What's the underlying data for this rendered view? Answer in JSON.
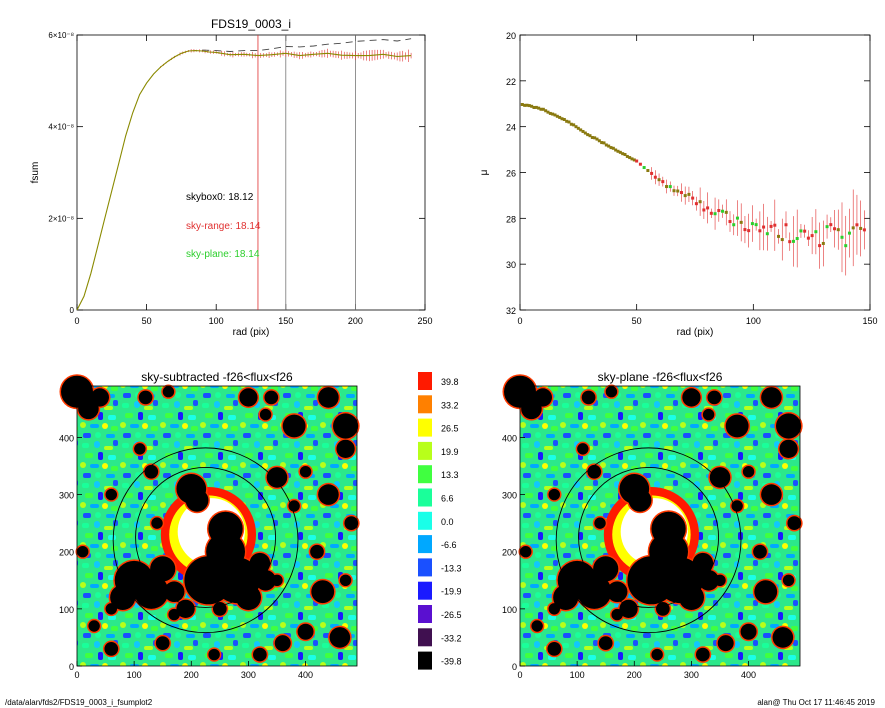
{
  "footer": {
    "left": "/data/alan/fds2/FDS19_0003_i_fsumplot2",
    "right": "alan@  Thu Oct 17 11:46:45 2019"
  },
  "colors": {
    "black": "#000000",
    "red": "#e03030",
    "green": "#2ccf2c",
    "olive": "#8a8a00",
    "dash": "#444444"
  },
  "chart_data": [
    {
      "id": "fsum",
      "type": "line",
      "title": "FDS19_0003_i",
      "xlabel": "rad (pix)",
      "ylabel": "fsum",
      "xlim": [
        0,
        250
      ],
      "ylim": [
        0,
        6e-08
      ],
      "xticks": [
        "0",
        "50",
        "100",
        "150",
        "200",
        "250"
      ],
      "yticks": [
        "0",
        "2×10⁻⁸",
        "4×10⁻⁸",
        "6×10⁻⁸"
      ],
      "yticks_values": [
        0,
        2e-08,
        4e-08,
        6e-08
      ],
      "vlines": [
        130,
        150,
        200
      ],
      "annotations": [
        {
          "text": "skybox0: 18.12",
          "color": "#000000"
        },
        {
          "text": "sky-range: 18.14",
          "color": "#e03030"
        },
        {
          "text": "sky-plane: 18.14",
          "color": "#2ccf2c"
        }
      ],
      "series": [
        {
          "style": "solid",
          "x": [
            0,
            5,
            10,
            15,
            20,
            25,
            30,
            35,
            40,
            45,
            50,
            55,
            60,
            65,
            70,
            75,
            80,
            85,
            90,
            95,
            100,
            110,
            120,
            130,
            140,
            150,
            160,
            170,
            180,
            190,
            200,
            210,
            220,
            230,
            240
          ],
          "y": [
            0,
            3e-09,
            8e-09,
            1.4e-08,
            2e-08,
            2.6e-08,
            3.2e-08,
            3.8e-08,
            4.3e-08,
            4.7e-08,
            4.95e-08,
            5.15e-08,
            5.3e-08,
            5.42e-08,
            5.52e-08,
            5.6e-08,
            5.65e-08,
            5.66e-08,
            5.65e-08,
            5.63e-08,
            5.62e-08,
            5.57e-08,
            5.58e-08,
            5.55e-08,
            5.57e-08,
            5.6e-08,
            5.55e-08,
            5.58e-08,
            5.6e-08,
            5.56e-08,
            5.55e-08,
            5.55e-08,
            5.58e-08,
            5.53e-08,
            5.55e-08
          ]
        },
        {
          "style": "dashed",
          "x": [
            90,
            100,
            110,
            120,
            130,
            140,
            150,
            160,
            170,
            180,
            190,
            200,
            210,
            220,
            230,
            240
          ],
          "y": [
            5.67e-08,
            5.66e-08,
            5.64e-08,
            5.66e-08,
            5.66e-08,
            5.7e-08,
            5.75e-08,
            5.74e-08,
            5.76e-08,
            5.8e-08,
            5.82e-08,
            5.86e-08,
            5.88e-08,
            5.9e-08,
            5.87e-08,
            5.92e-08
          ]
        }
      ]
    },
    {
      "id": "mu",
      "type": "scatter",
      "xlabel": "rad (pix)",
      "ylabel": "μ",
      "xlim": [
        0,
        150
      ],
      "ylim": [
        32,
        20
      ],
      "xticks": [
        "0",
        "50",
        "100",
        "150"
      ],
      "yticks": [
        "20",
        "22",
        "24",
        "26",
        "28",
        "30",
        "32"
      ],
      "yticks_values": [
        20,
        22,
        24,
        26,
        28,
        30,
        32
      ],
      "trend": {
        "x": [
          0,
          10,
          20,
          30,
          40,
          50,
          60,
          70,
          80,
          90,
          100,
          110,
          120,
          130,
          140,
          150
        ],
        "y": [
          23.0,
          23.25,
          23.75,
          24.4,
          24.95,
          25.5,
          26.4,
          26.9,
          27.6,
          28.0,
          28.5,
          28.6,
          28.7,
          28.8,
          28.7,
          28.9
        ]
      }
    },
    {
      "id": "sky-subtracted",
      "type": "heatmap",
      "title": "sky-subtracted -f26<flux<f26",
      "xlim": [
        0,
        490
      ],
      "ylim": [
        0,
        490
      ],
      "xticks": [
        "0",
        "100",
        "200",
        "300",
        "400"
      ],
      "yticks": [
        "0",
        "100",
        "200",
        "300",
        "400"
      ]
    },
    {
      "id": "colorbar",
      "type": "heatmap",
      "labels": [
        "39.8",
        "33.2",
        "26.5",
        "19.9",
        "13.3",
        "6.6",
        "0.0",
        "-6.6",
        "-13.3",
        "-19.9",
        "-26.5",
        "-33.2",
        "-39.8"
      ],
      "colors": [
        "#ff1a00",
        "#ff8000",
        "#ffff00",
        "#b8ff1a",
        "#40ff40",
        "#1aff9a",
        "#1affe8",
        "#00a8ff",
        "#1a50ff",
        "#1a1aff",
        "#5a10d0",
        "#401050",
        "#000000"
      ]
    },
    {
      "id": "sky-plane",
      "type": "heatmap",
      "title": "sky-plane -f26<flux<f26",
      "xlim": [
        0,
        490
      ],
      "ylim": [
        0,
        490
      ],
      "xticks": [
        "0",
        "100",
        "200",
        "300",
        "400"
      ],
      "yticks": [
        "0",
        "100",
        "200",
        "300",
        "400"
      ]
    }
  ]
}
